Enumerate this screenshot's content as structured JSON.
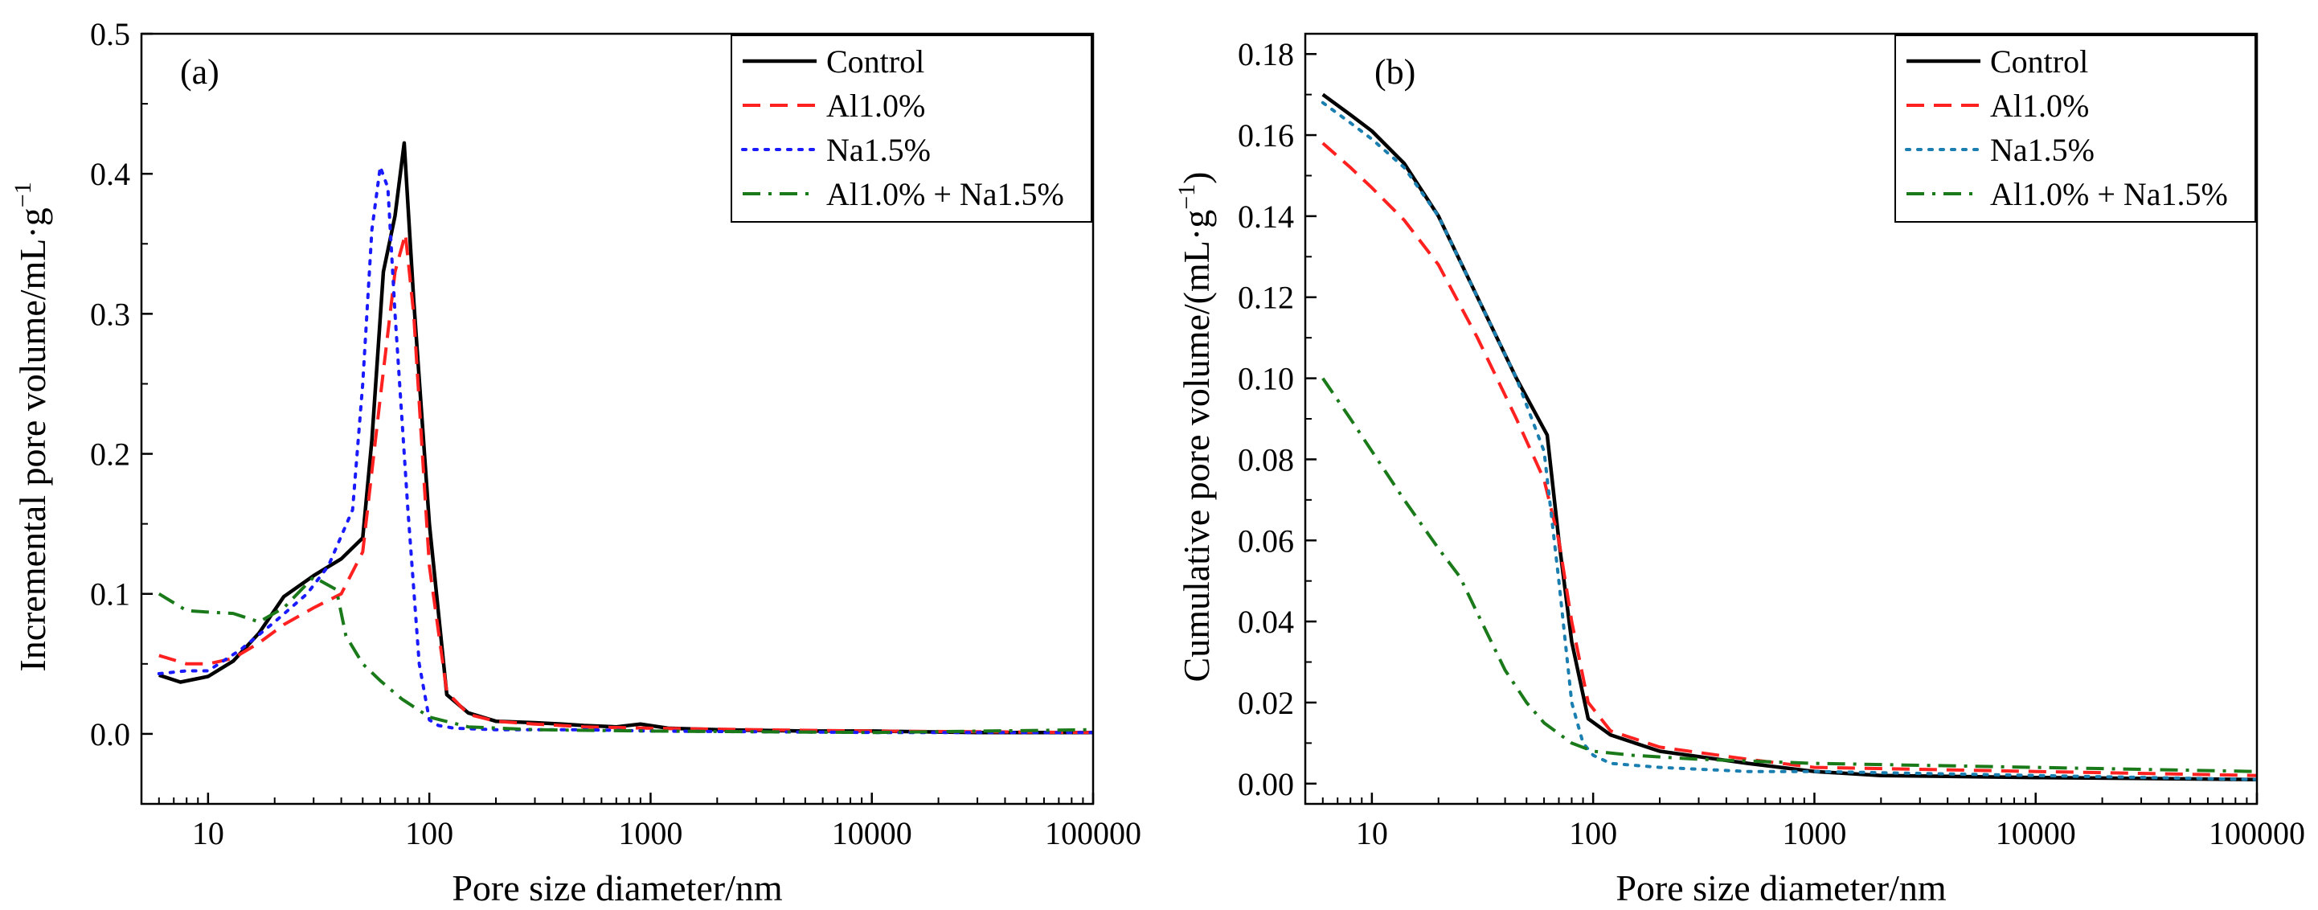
{
  "chart_data": [
    {
      "type": "line",
      "panel_label": "(a)",
      "xlabel": "Pore size diameter/nm",
      "ylabel": "Incremental pore volume/mL·g",
      "ylabel_sup": "−1",
      "xscale": "log",
      "xlim": [
        5,
        100000
      ],
      "ylim": [
        -0.05,
        0.5
      ],
      "xticks": [
        10,
        100,
        1000,
        10000,
        100000
      ],
      "xtick_labels": [
        "10",
        "100",
        "1000",
        "10000",
        "100000"
      ],
      "yticks": [
        0.0,
        0.1,
        0.2,
        0.3,
        0.4,
        0.5
      ],
      "ytick_labels": [
        "0.0",
        "0.1",
        "0.2",
        "0.3",
        "0.4",
        "0.5"
      ],
      "legend_position": "top-right",
      "series": [
        {
          "name": "Control",
          "color": "#000000",
          "dash": "solid",
          "x": [
            6,
            7.5,
            10,
            13,
            17,
            22,
            30,
            40,
            50,
            55,
            62,
            70,
            77,
            85,
            100,
            120,
            150,
            200,
            300,
            400,
            500,
            700,
            900,
            1200,
            2000,
            5000,
            10000,
            30000,
            100000
          ],
          "y": [
            0.042,
            0.037,
            0.041,
            0.052,
            0.072,
            0.098,
            0.113,
            0.125,
            0.14,
            0.21,
            0.33,
            0.37,
            0.422,
            0.31,
            0.15,
            0.028,
            0.015,
            0.009,
            0.008,
            0.007,
            0.006,
            0.005,
            0.007,
            0.004,
            0.003,
            0.002,
            0.002,
            0.001,
            0.001
          ]
        },
        {
          "name": "Al1.0%",
          "color": "#ff2020",
          "dash": "dashed",
          "x": [
            6,
            8,
            10,
            13,
            17,
            22,
            30,
            40,
            50,
            60,
            70,
            78,
            85,
            100,
            120,
            150,
            200,
            300,
            500,
            1000,
            3000,
            10000,
            100000
          ],
          "y": [
            0.056,
            0.05,
            0.05,
            0.054,
            0.065,
            0.078,
            0.09,
            0.1,
            0.13,
            0.24,
            0.33,
            0.357,
            0.3,
            0.12,
            0.03,
            0.014,
            0.009,
            0.007,
            0.005,
            0.004,
            0.003,
            0.002,
            0.001
          ]
        },
        {
          "name": "Na1.5%",
          "color": "#1a1aff",
          "dash": "dotted",
          "x": [
            6,
            8,
            10,
            14,
            20,
            28,
            35,
            45,
            50,
            55,
            60,
            65,
            70,
            80,
            90,
            100,
            110,
            130,
            200,
            500,
            1000,
            10000,
            100000
          ],
          "y": [
            0.043,
            0.045,
            0.045,
            0.06,
            0.08,
            0.1,
            0.12,
            0.16,
            0.25,
            0.36,
            0.405,
            0.39,
            0.3,
            0.16,
            0.05,
            0.01,
            0.006,
            0.004,
            0.003,
            0.003,
            0.002,
            0.001,
            0.001
          ]
        },
        {
          "name": "Al1.0% + Na1.5%",
          "color": "#1a7a1a",
          "dash": "dashdot",
          "x": [
            6,
            8,
            10,
            13,
            17,
            22,
            30,
            38,
            42,
            50,
            60,
            75,
            100,
            150,
            300,
            1000,
            10000,
            100000
          ],
          "y": [
            0.1,
            0.088,
            0.087,
            0.086,
            0.08,
            0.09,
            0.112,
            0.103,
            0.07,
            0.05,
            0.038,
            0.025,
            0.012,
            0.005,
            0.003,
            0.002,
            0.001,
            0.003
          ]
        }
      ]
    },
    {
      "type": "line",
      "panel_label": "(b)",
      "xlabel": "Pore size diameter/nm",
      "ylabel": "Cumulative pore volume/(mL·g",
      "ylabel_sup": "−1",
      "ylabel_close": ")",
      "xscale": "log",
      "xlim": [
        5,
        100000
      ],
      "ylim": [
        -0.005,
        0.185
      ],
      "xticks": [
        10,
        100,
        1000,
        10000,
        100000
      ],
      "xtick_labels": [
        "10",
        "100",
        "1000",
        "10000",
        "100000"
      ],
      "yticks": [
        0.0,
        0.02,
        0.04,
        0.06,
        0.08,
        0.1,
        0.12,
        0.14,
        0.16,
        0.18
      ],
      "ytick_labels": [
        "0.00",
        "0.02",
        "0.04",
        "0.06",
        "0.08",
        "0.10",
        "0.12",
        "0.14",
        "0.16",
        "0.18"
      ],
      "legend_position": "top-right",
      "series": [
        {
          "name": "Control",
          "color": "#000000",
          "dash": "solid",
          "x": [
            6,
            8,
            10,
            14,
            20,
            30,
            45,
            62,
            70,
            80,
            95,
            120,
            200,
            500,
            1000,
            2000,
            10000,
            100000
          ],
          "y": [
            0.17,
            0.165,
            0.161,
            0.153,
            0.14,
            0.12,
            0.1,
            0.086,
            0.06,
            0.035,
            0.016,
            0.012,
            0.008,
            0.005,
            0.003,
            0.002,
            0.0015,
            0.001
          ]
        },
        {
          "name": "Al1.0%",
          "color": "#ff2020",
          "dash": "dashed",
          "x": [
            6,
            8,
            10,
            14,
            20,
            30,
            45,
            60,
            70,
            80,
            95,
            120,
            200,
            500,
            1000,
            10000,
            100000
          ],
          "y": [
            0.158,
            0.152,
            0.147,
            0.139,
            0.128,
            0.11,
            0.09,
            0.075,
            0.06,
            0.04,
            0.02,
            0.013,
            0.009,
            0.006,
            0.004,
            0.003,
            0.002
          ]
        },
        {
          "name": "Na1.5%",
          "color": "#1a7fb0",
          "dash": "dotted",
          "x": [
            6,
            8,
            10,
            14,
            20,
            30,
            45,
            60,
            70,
            80,
            90,
            100,
            120,
            200,
            500,
            1000,
            10000,
            100000
          ],
          "y": [
            0.168,
            0.163,
            0.159,
            0.152,
            0.14,
            0.12,
            0.1,
            0.082,
            0.05,
            0.02,
            0.01,
            0.007,
            0.005,
            0.004,
            0.003,
            0.003,
            0.002,
            0.001
          ]
        },
        {
          "name": "Al1.0% + Na1.5%",
          "color": "#1a7a1a",
          "dash": "dashdot",
          "x": [
            6,
            8,
            10,
            14,
            20,
            25,
            30,
            40,
            50,
            60,
            80,
            100,
            150,
            300,
            1000,
            10000,
            100000
          ],
          "y": [
            0.1,
            0.09,
            0.082,
            0.07,
            0.058,
            0.051,
            0.042,
            0.028,
            0.02,
            0.015,
            0.01,
            0.008,
            0.007,
            0.006,
            0.005,
            0.004,
            0.003
          ]
        }
      ]
    }
  ]
}
